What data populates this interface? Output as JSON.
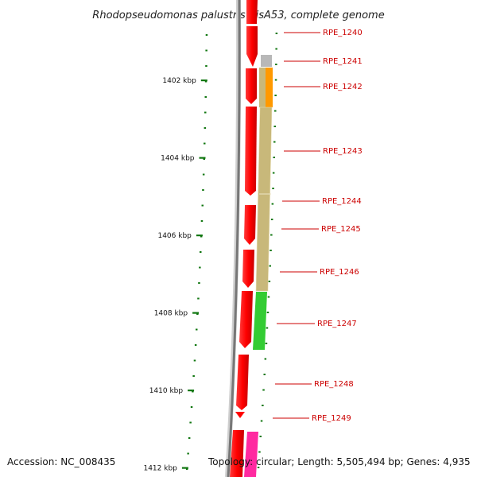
{
  "title": "Rhodopseudomonas palustris BisA53, complete genome",
  "accession": "Accession: NC_008435",
  "summary": "Topology: circular; Length: 5,505,494 bp; Genes: 4,935",
  "ticks": [
    {
      "label": "1402 kbp",
      "kbp": 1402
    },
    {
      "label": "1404 kbp",
      "kbp": 1404
    },
    {
      "label": "1406 kbp",
      "kbp": 1406
    },
    {
      "label": "1408 kbp",
      "kbp": 1408
    },
    {
      "label": "1410 kbp",
      "kbp": 1410
    },
    {
      "label": "1412 kbp",
      "kbp": 1412
    }
  ],
  "genes": [
    {
      "label": "RPE_1240"
    },
    {
      "label": "RPE_1241"
    },
    {
      "label": "RPE_1242"
    },
    {
      "label": "RPE_1243"
    },
    {
      "label": "RPE_1244"
    },
    {
      "label": "RPE_1245"
    },
    {
      "label": "RPE_1246"
    },
    {
      "label": "RPE_1247"
    },
    {
      "label": "RPE_1248"
    },
    {
      "label": "RPE_1249"
    }
  ],
  "colors": {
    "cds": "#ff0000",
    "backbone": "#888888",
    "tick": "#117711",
    "label": "#cc0000",
    "feature_grey": "#b8b8b8",
    "feature_orange": "#ff9900",
    "feature_olive": "#c8b87a",
    "feature_green": "#33cc33",
    "feature_pink": "#ff2aa0"
  }
}
